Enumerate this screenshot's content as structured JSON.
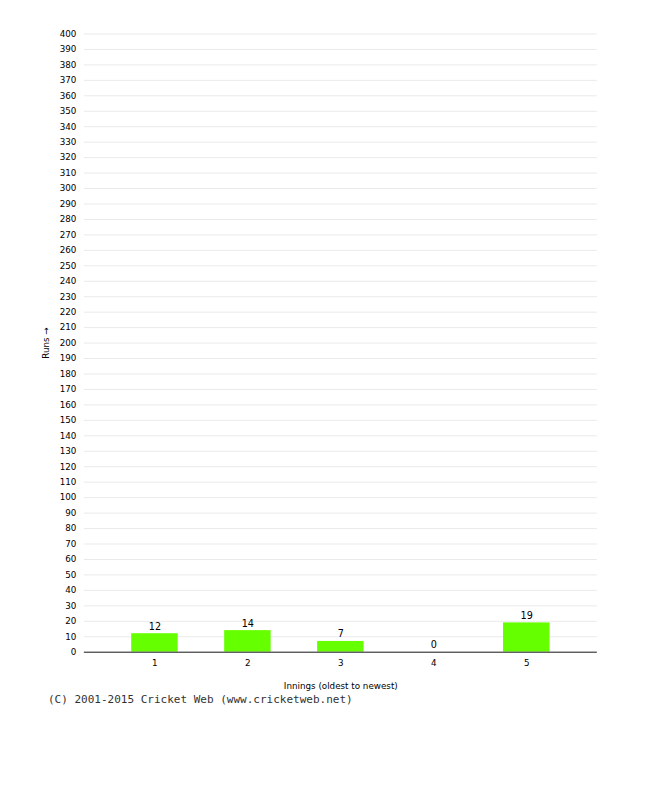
{
  "chart_data": {
    "type": "bar",
    "categories": [
      1,
      2,
      3,
      4,
      5
    ],
    "values": [
      12,
      14,
      7,
      0,
      19
    ],
    "color": "#66ff00",
    "xlabel": "Innings (oldest to newest)",
    "ylabel": "Runs",
    "ylim": [
      0,
      400
    ],
    "yticks": [
      0,
      10,
      20,
      30,
      40,
      50,
      60,
      70,
      80,
      90,
      100,
      110,
      120,
      130,
      140,
      150,
      160,
      170,
      180,
      190,
      200,
      210,
      220,
      230,
      240,
      250,
      260,
      270,
      280,
      290,
      300,
      310,
      320,
      330,
      340,
      350,
      360,
      370,
      380,
      390,
      400
    ],
    "grid": true,
    "data_labels": true,
    "caption": "(C) 2001-2015 Cricket Web (www.cricketweb.net)"
  }
}
